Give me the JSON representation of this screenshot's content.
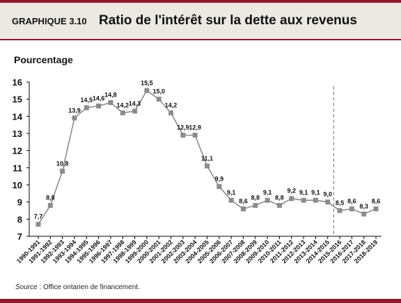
{
  "header": {
    "tag": "GRAPHIQUE 3.10",
    "title": "Ratio de l'intérêt sur la dette aux revenus"
  },
  "source": {
    "label": "Source",
    "text": " : Office  ontarien de financement."
  },
  "colors": {
    "accent": "#8b1a2b",
    "header_bg": "#ece9e3",
    "series": "#8c8c8c"
  },
  "chart_data": {
    "type": "line",
    "title": "",
    "xlabel": "",
    "ylabel": "Pourcentage",
    "ylim": [
      7,
      16
    ],
    "yticks": [
      7,
      8,
      9,
      10,
      11,
      12,
      13,
      14,
      15,
      16
    ],
    "grid": false,
    "categories": [
      "1990-1991",
      "1991-1992",
      "1992-1993",
      "1993-1994",
      "1994-1995",
      "1995-1996",
      "1996-1997",
      "1997-1998",
      "1998-1999",
      "1999-2000",
      "2000-2001",
      "2001-2002",
      "2002-2003",
      "2003-2004",
      "2004-2005",
      "2005-2006",
      "2006-2007",
      "2007-2008",
      "2008-2009",
      "2009-2010",
      "2010-2011",
      "2011-2012",
      "2012-2013",
      "2013-2014",
      "2014-2015",
      "2015-2016",
      "2016-2017",
      "2017-2018",
      "2018-2019"
    ],
    "values": [
      7.7,
      8.8,
      10.8,
      13.9,
      14.5,
      14.6,
      14.8,
      14.2,
      14.3,
      15.5,
      15.0,
      14.2,
      12.9,
      12.9,
      11.1,
      9.9,
      9.1,
      8.6,
      8.8,
      9.1,
      8.8,
      9.2,
      9.1,
      9.1,
      9.0,
      8.5,
      8.6,
      8.3,
      8.6
    ],
    "data_labels": [
      "7,7",
      "8,8",
      "10,8",
      "13,9",
      "14,5",
      "14,6",
      "14,8",
      "14,2",
      "14,3",
      "15,5",
      "15,0",
      "14,2",
      "12,9",
      "12,9",
      "11,1",
      "9,9",
      "9,1",
      "8,6",
      "8,8",
      "9,1",
      "8,8",
      "9,2",
      "9,1",
      "9,1",
      "9,0",
      "8,5",
      "8,6",
      "8,3",
      "8,6"
    ],
    "divider_after_category": "2014-2015",
    "divider_style": "dashed"
  }
}
